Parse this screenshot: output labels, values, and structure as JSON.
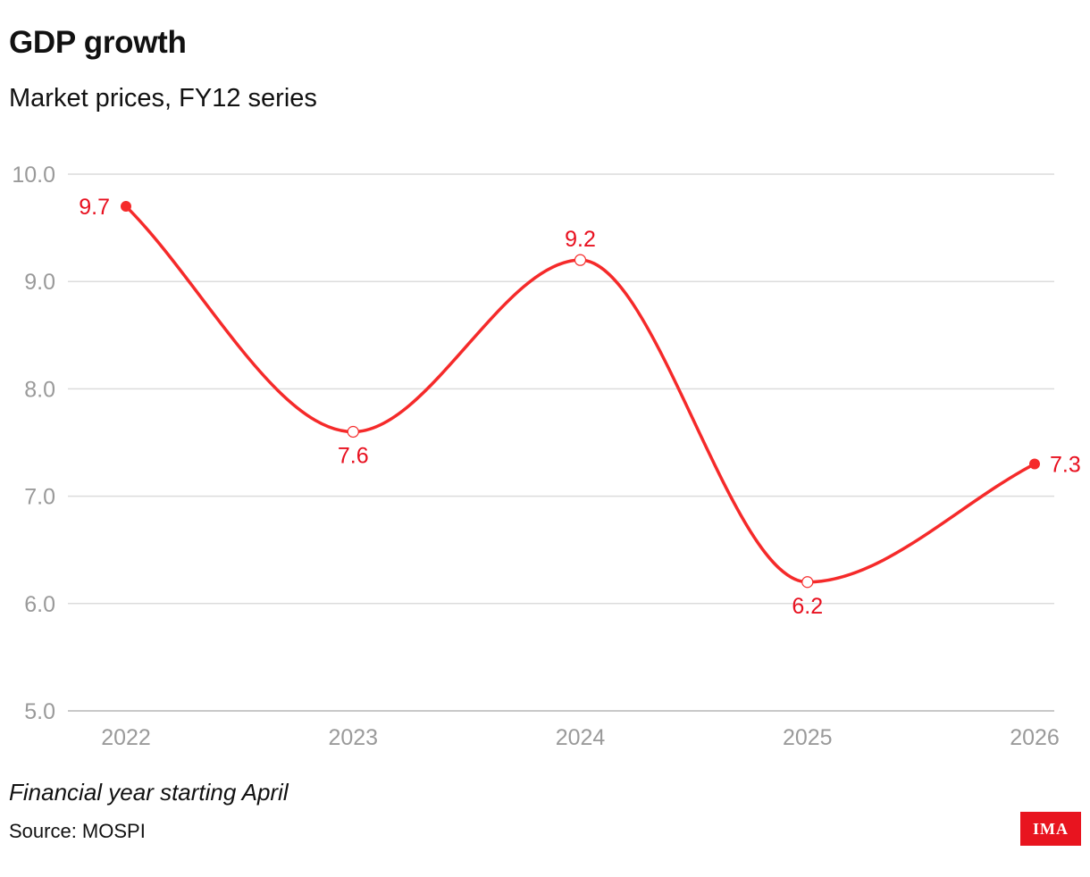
{
  "title": "GDP growth",
  "subtitle": "Market prices, FY12 series",
  "note": "Financial year starting April",
  "source": "Source: MOSPI",
  "logo": {
    "text": "IMA",
    "background": "#e8141f",
    "color": "#ffffff"
  },
  "colors": {
    "line": "#f52a2a",
    "label": "#e8101f",
    "grid": "#dcdcdc",
    "axis": "#c8c8c8",
    "tick_text": "#9a9a9a"
  },
  "chart_data": {
    "type": "line",
    "x": [
      "2022",
      "2023",
      "2024",
      "2025",
      "2026"
    ],
    "series": [
      {
        "values": [
          9.7,
          7.6,
          9.2,
          6.2,
          7.3
        ]
      }
    ],
    "data_labels": [
      "9.7",
      "7.6",
      "9.2",
      "6.2",
      "7.3"
    ],
    "y_ticks": [
      "5.0",
      "6.0",
      "7.0",
      "8.0",
      "9.0",
      "10.0"
    ],
    "ylim": [
      5.0,
      10.0
    ],
    "grid": true,
    "smooth": true,
    "xlabel": "",
    "ylabel": ""
  }
}
